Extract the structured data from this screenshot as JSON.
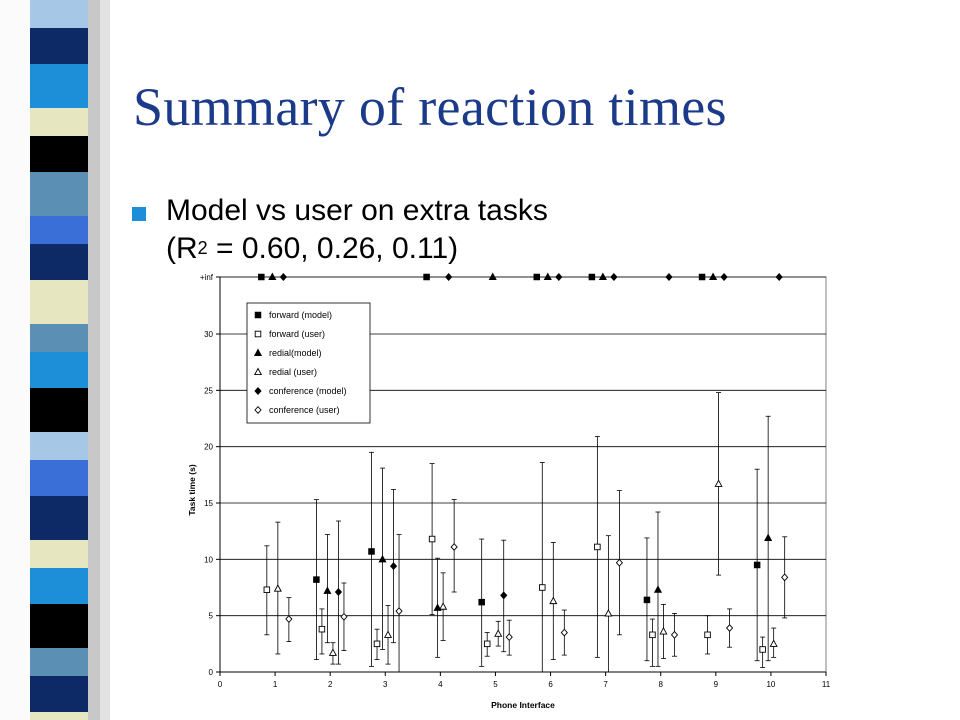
{
  "slide": {
    "title": "Summary of reaction times",
    "bullet": {
      "line1": "Model vs user on extra tasks",
      "line2_prefix": "(R",
      "line2_sup": "2",
      "line2_suffix": " = 0.60, 0.26, 0.11)"
    }
  },
  "colors": {
    "title": "#1c3a8a",
    "bullet": "#1d8fd8",
    "stripe_palette": [
      "#a6c7e6",
      "#0d2a66",
      "#1d8fd8",
      "#e6e6c0",
      "#000000",
      "#5b8fb3",
      "#3a6fd8"
    ]
  },
  "chart_data": {
    "type": "scatter",
    "title": "",
    "xlabel": "Phone Interface",
    "ylabel": "Task time (s)",
    "xlim": [
      0,
      11
    ],
    "ylim": [
      0,
      35
    ],
    "x_ticks": [
      "0",
      "1",
      "2",
      "3",
      "4",
      "5",
      "6",
      "7",
      "8",
      "9",
      "10",
      "11"
    ],
    "y_ticks": [
      "0",
      "5",
      "10",
      "15",
      "20",
      "25",
      "30",
      "+inf"
    ],
    "inf_label": "+inf",
    "grid": true,
    "legend_position": "top-left",
    "series": [
      {
        "name": "forward (model)",
        "marker": "filled-square",
        "points": [
          {
            "x": 0.75,
            "y": "inf"
          },
          {
            "x": 1.75,
            "y": 8.2,
            "lo": 1.1,
            "hi": 15.3
          },
          {
            "x": 2.75,
            "y": 10.7,
            "lo": 0.5,
            "hi": 19.5
          },
          {
            "x": 3.75,
            "y": "inf"
          },
          {
            "x": 4.75,
            "y": 6.2,
            "lo": 0.5,
            "hi": 11.8
          },
          {
            "x": 5.75,
            "y": "inf"
          },
          {
            "x": 6.75,
            "y": "inf"
          },
          {
            "x": 7.75,
            "y": 6.4,
            "lo": 1.0,
            "hi": 11.9
          },
          {
            "x": 8.75,
            "y": "inf"
          },
          {
            "x": 9.75,
            "y": 9.5,
            "lo": 1.0,
            "hi": 18.0
          }
        ]
      },
      {
        "name": "forward (user)",
        "marker": "open-square",
        "points": [
          {
            "x": 0.85,
            "y": 7.3,
            "lo": 3.3,
            "hi": 11.2
          },
          {
            "x": 1.85,
            "y": 3.8,
            "lo": 1.6,
            "hi": 5.6
          },
          {
            "x": 2.85,
            "y": 2.5,
            "lo": 1.1,
            "hi": 3.8
          },
          {
            "x": 3.85,
            "y": 11.8,
            "lo": 5.1,
            "hi": 18.5
          },
          {
            "x": 4.85,
            "y": 2.5,
            "lo": 1.4,
            "hi": 3.5
          },
          {
            "x": 5.85,
            "y": 7.5,
            "lo": 0,
            "hi": 18.6
          },
          {
            "x": 6.85,
            "y": 11.1,
            "lo": 1.3,
            "hi": 20.9
          },
          {
            "x": 7.85,
            "y": 3.3,
            "lo": 0.5,
            "hi": 4.7
          },
          {
            "x": 8.85,
            "y": 3.3,
            "lo": 1.6,
            "hi": 5.0
          },
          {
            "x": 9.85,
            "y": 2.0,
            "lo": 0.4,
            "hi": 3.1
          }
        ]
      },
      {
        "name": "redial(model)",
        "marker": "filled-triangle",
        "points": [
          {
            "x": 0.95,
            "y": "inf"
          },
          {
            "x": 1.95,
            "y": 7.2,
            "lo": 2.6,
            "hi": 12.2
          },
          {
            "x": 2.95,
            "y": 10.0,
            "lo": 2.0,
            "hi": 18.1
          },
          {
            "x": 3.95,
            "y": 5.7,
            "lo": 1.3,
            "hi": 10.1
          },
          {
            "x": 4.95,
            "y": "inf"
          },
          {
            "x": 5.95,
            "y": "inf"
          },
          {
            "x": 6.95,
            "y": "inf"
          },
          {
            "x": 7.95,
            "y": 7.3,
            "lo": 0.5,
            "hi": 14.2
          },
          {
            "x": 8.95,
            "y": "inf"
          },
          {
            "x": 9.95,
            "y": 11.9,
            "lo": 1.0,
            "hi": 22.7
          }
        ]
      },
      {
        "name": "redial (user)",
        "marker": "open-triangle",
        "points": [
          {
            "x": 1.05,
            "y": 7.4,
            "lo": 1.6,
            "hi": 13.3
          },
          {
            "x": 2.05,
            "y": 1.7,
            "lo": 0.7,
            "hi": 2.6
          },
          {
            "x": 3.05,
            "y": 3.3,
            "lo": 0.7,
            "hi": 5.9
          },
          {
            "x": 4.05,
            "y": 5.8,
            "lo": 2.8,
            "hi": 8.8
          },
          {
            "x": 5.05,
            "y": 3.4,
            "lo": 2.3,
            "hi": 4.5
          },
          {
            "x": 6.05,
            "y": 6.3,
            "lo": 1.1,
            "hi": 11.5
          },
          {
            "x": 7.05,
            "y": 5.2,
            "lo": 0,
            "hi": 12.1
          },
          {
            "x": 8.05,
            "y": 3.6,
            "lo": 1.2,
            "hi": 6.0
          },
          {
            "x": 9.05,
            "y": 16.7,
            "lo": 8.6,
            "hi": 24.8
          },
          {
            "x": 10.05,
            "y": 2.5,
            "lo": 1.3,
            "hi": 3.9
          }
        ]
      },
      {
        "name": "conference (model)",
        "marker": "filled-diamond",
        "points": [
          {
            "x": 1.15,
            "y": "inf"
          },
          {
            "x": 2.15,
            "y": 7.1,
            "lo": 0.7,
            "hi": 13.4
          },
          {
            "x": 3.15,
            "y": 9.4,
            "lo": 2.6,
            "hi": 16.2
          },
          {
            "x": 4.15,
            "y": "inf"
          },
          {
            "x": 5.15,
            "y": 6.8,
            "lo": 1.8,
            "hi": 11.7
          },
          {
            "x": 6.15,
            "y": "inf"
          },
          {
            "x": 7.15,
            "y": "inf"
          },
          {
            "x": 8.15,
            "y": "inf"
          },
          {
            "x": 9.15,
            "y": "inf"
          },
          {
            "x": 10.15,
            "y": "inf"
          }
        ]
      },
      {
        "name": "conference (user)",
        "marker": "open-diamond",
        "points": [
          {
            "x": 1.25,
            "y": 4.7,
            "lo": 2.7,
            "hi": 6.6
          },
          {
            "x": 2.25,
            "y": 4.9,
            "lo": 1.9,
            "hi": 7.9
          },
          {
            "x": 3.25,
            "y": 5.4,
            "lo": 0,
            "hi": 12.2
          },
          {
            "x": 4.25,
            "y": 11.1,
            "lo": 7.1,
            "hi": 15.3
          },
          {
            "x": 5.25,
            "y": 3.1,
            "lo": 1.5,
            "hi": 4.6
          },
          {
            "x": 6.25,
            "y": 3.5,
            "lo": 1.5,
            "hi": 5.5
          },
          {
            "x": 7.25,
            "y": 9.7,
            "lo": 3.3,
            "hi": 16.1
          },
          {
            "x": 8.25,
            "y": 3.3,
            "lo": 1.4,
            "hi": 5.2
          },
          {
            "x": 9.25,
            "y": 3.9,
            "lo": 2.2,
            "hi": 5.6
          },
          {
            "x": 10.25,
            "y": 8.4,
            "lo": 4.8,
            "hi": 12.0
          }
        ]
      }
    ]
  }
}
